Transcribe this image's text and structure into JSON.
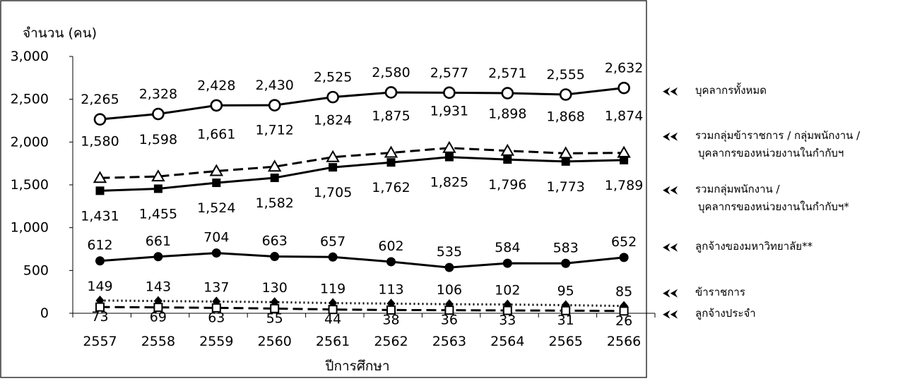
{
  "chart_data": {
    "type": "line",
    "title": "",
    "ylabel": "จำนวน (คน)",
    "xlabel": "ปีการศึกษา",
    "ylim": [
      0,
      3000
    ],
    "yticks": [
      "0",
      "500",
      "1,000",
      "1,500",
      "2,000",
      "2,500",
      "3,000"
    ],
    "categories": [
      "2557",
      "2558",
      "2559",
      "2560",
      "2561",
      "2562",
      "2563",
      "2564",
      "2565",
      "2566"
    ],
    "grid": false,
    "legend_position": "right",
    "series": [
      {
        "name": "บุคลากรทั้งหมด",
        "values": [
          2265,
          2328,
          2428,
          2430,
          2525,
          2580,
          2577,
          2571,
          2555,
          2632
        ],
        "labels": [
          "2,265",
          "2,328",
          "2,428",
          "2,430",
          "2,525",
          "2,580",
          "2,577",
          "2,571",
          "2,555",
          "2,632"
        ],
        "marker": "circle-open",
        "line": "solid"
      },
      {
        "name": "รวมกลุ่มข้าราชการ / กลุ่มพนักงาน / บุคลากรของหน่วยงานในกำกับฯ",
        "values": [
          1580,
          1598,
          1661,
          1712,
          1824,
          1875,
          1931,
          1898,
          1868,
          1874
        ],
        "labels": [
          "1,580",
          "1,598",
          "1,661",
          "1,712",
          "1,824",
          "1,875",
          "1,931",
          "1,898",
          "1,868",
          "1,874"
        ],
        "marker": "triangle-open",
        "line": "dashed"
      },
      {
        "name": "รวมกลุ่มพนักงาน / บุคลากรของหน่วยงานในกำกับฯ*",
        "values": [
          1431,
          1455,
          1524,
          1582,
          1705,
          1762,
          1825,
          1796,
          1773,
          1789
        ],
        "labels": [
          "1,431",
          "1,455",
          "1,524",
          "1,582",
          "1,705",
          "1,762",
          "1,825",
          "1,796",
          "1,773",
          "1,789"
        ],
        "marker": "square-filled",
        "line": "solid"
      },
      {
        "name": "ลูกจ้างของมหาวิทยาลัย**",
        "values": [
          612,
          661,
          704,
          663,
          657,
          602,
          535,
          584,
          583,
          652
        ],
        "labels": [
          "612",
          "661",
          "704",
          "663",
          "657",
          "602",
          "535",
          "584",
          "583",
          "652"
        ],
        "marker": "circle-filled",
        "line": "solid"
      },
      {
        "name": "ข้าราชการ",
        "values": [
          149,
          143,
          137,
          130,
          119,
          113,
          106,
          102,
          95,
          85
        ],
        "labels": [
          "149",
          "143",
          "137",
          "130",
          "119",
          "113",
          "106",
          "102",
          "95",
          "85"
        ],
        "marker": "diamond-filled",
        "line": "dotted"
      },
      {
        "name": "ลูกจ้างประจำ",
        "values": [
          73,
          69,
          63,
          55,
          44,
          38,
          36,
          33,
          31,
          26
        ],
        "labels": [
          "73",
          "69",
          "63",
          "55",
          "44",
          "38",
          "36",
          "33",
          "31",
          "26"
        ],
        "marker": "square-open",
        "line": "dashed"
      }
    ],
    "legend": [
      {
        "lines": [
          "บุคลากรทั้งหมด"
        ]
      },
      {
        "lines": [
          "รวมกลุ่มข้าราชการ / กลุ่มพนักงาน /",
          "บุคลากรของหน่วยงานในกำกับฯ"
        ]
      },
      {
        "lines": [
          "รวมกลุ่มพนักงาน /",
          "บุคลากรของหน่วยงานในกำกับฯ*"
        ]
      },
      {
        "lines": [
          "ลูกจ้างของมหาวิทยาลัย**"
        ]
      },
      {
        "lines": [
          "ข้าราชการ"
        ]
      },
      {
        "lines": [
          "ลูกจ้างประจำ"
        ]
      }
    ],
    "legend_arrow": "⮜⮜"
  }
}
